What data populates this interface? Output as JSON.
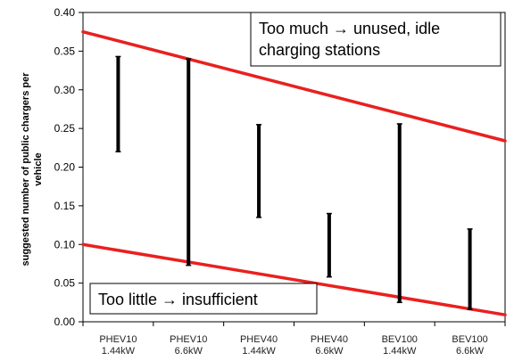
{
  "chart_data": {
    "type": "range",
    "ylabel_lines": [
      "suggested number of public chargers per",
      "vehicle"
    ],
    "xlabel": "",
    "ylim": [
      0.0,
      0.4
    ],
    "yticks": [
      "0.00",
      "0.05",
      "0.10",
      "0.15",
      "0.20",
      "0.25",
      "0.30",
      "0.35",
      "0.40"
    ],
    "grid": false,
    "categories": [
      {
        "line1": "PHEV10",
        "line2": "1.44kW"
      },
      {
        "line1": "PHEV10",
        "line2": "6.6kW"
      },
      {
        "line1": "PHEV40",
        "line2": "1.44kW"
      },
      {
        "line1": "PHEV40",
        "line2": "6.6kW"
      },
      {
        "line1": "BEV100",
        "line2": "1.44kW"
      },
      {
        "line1": "BEV100",
        "line2": "6.6kW"
      }
    ],
    "ranges": [
      {
        "low": 0.22,
        "high": 0.343
      },
      {
        "low": 0.073,
        "high": 0.34
      },
      {
        "low": 0.135,
        "high": 0.255
      },
      {
        "low": 0.058,
        "high": 0.14
      },
      {
        "low": 0.025,
        "high": 0.256
      },
      {
        "low": 0.016,
        "high": 0.12
      }
    ],
    "trend_lines": [
      {
        "name": "upper",
        "color": "#e8211f",
        "x_start": 0.0,
        "y_start": 0.375,
        "x_end": 6.0,
        "y_end": 0.234
      },
      {
        "name": "lower",
        "color": "#e8211f",
        "x_start": 0.0,
        "y_start": 0.1,
        "x_end": 6.0,
        "y_end": 0.009
      }
    ],
    "annotations": {
      "too_much": {
        "line1": "Too much → unused, idle",
        "line2": "charging stations"
      },
      "too_little": "Too little → insufficient"
    }
  }
}
